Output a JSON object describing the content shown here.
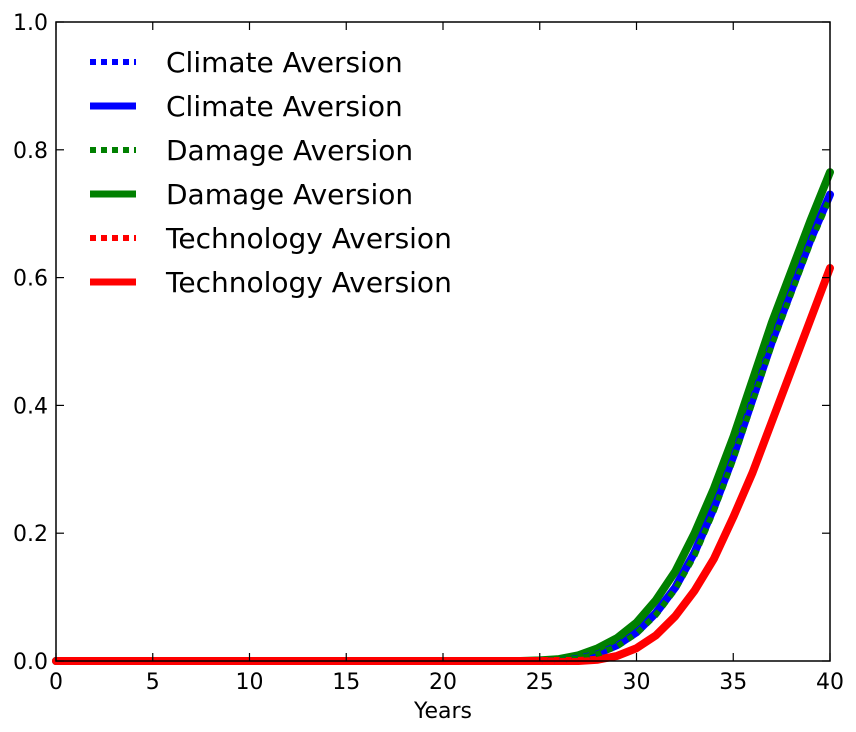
{
  "chart_data": {
    "type": "line",
    "title": "",
    "xlabel": "Years",
    "ylabel": "",
    "xlim": [
      0,
      40
    ],
    "ylim": [
      0,
      1
    ],
    "x_ticks": [
      "0",
      "5",
      "10",
      "15",
      "20",
      "25",
      "30",
      "35",
      "40"
    ],
    "y_ticks": [
      "0.0",
      "0.2",
      "0.4",
      "0.6",
      "0.8",
      "1.0"
    ],
    "grid": false,
    "legend_position": "upper-left",
    "x": [
      0,
      5,
      10,
      15,
      20,
      24,
      25,
      26,
      27,
      28,
      29,
      30,
      31,
      32,
      33,
      34,
      35,
      36,
      37,
      38,
      39,
      40
    ],
    "series": [
      {
        "name": "Climate Aversion",
        "style": "dotted",
        "color": "#0000ff",
        "values": [
          0,
          0,
          0,
          0,
          0,
          0.0,
          0.0,
          0.001,
          0.005,
          0.012,
          0.025,
          0.045,
          0.075,
          0.115,
          0.17,
          0.24,
          0.32,
          0.41,
          0.5,
          0.58,
          0.66,
          0.73
        ]
      },
      {
        "name": "Climate Aversion",
        "style": "solid",
        "color": "#0000ff",
        "values": [
          0,
          0,
          0,
          0,
          0,
          0.0,
          0.0,
          0.001,
          0.005,
          0.012,
          0.025,
          0.045,
          0.075,
          0.115,
          0.17,
          0.24,
          0.32,
          0.41,
          0.5,
          0.58,
          0.66,
          0.73
        ]
      },
      {
        "name": "Damage Aversion",
        "style": "dotted",
        "color": "#008000",
        "values": [
          0,
          0,
          0,
          0,
          0,
          0.0,
          0.0,
          0.001,
          0.004,
          0.011,
          0.023,
          0.043,
          0.072,
          0.112,
          0.165,
          0.235,
          0.315,
          0.405,
          0.495,
          0.575,
          0.655,
          0.725
        ]
      },
      {
        "name": "Damage Aversion",
        "style": "solid",
        "color": "#008000",
        "values": [
          0,
          0,
          0,
          0,
          0,
          0.0,
          0.001,
          0.003,
          0.009,
          0.02,
          0.036,
          0.06,
          0.095,
          0.14,
          0.2,
          0.27,
          0.35,
          0.44,
          0.53,
          0.61,
          0.69,
          0.765
        ]
      },
      {
        "name": "Technology Aversion",
        "style": "dotted",
        "color": "#ff0000",
        "values": [
          0,
          0,
          0,
          0,
          0,
          0.0,
          0.0,
          0.0,
          0.0,
          0.002,
          0.008,
          0.02,
          0.04,
          0.07,
          0.11,
          0.16,
          0.225,
          0.295,
          0.375,
          0.455,
          0.535,
          0.615
        ]
      },
      {
        "name": "Technology Aversion",
        "style": "solid",
        "color": "#ff0000",
        "values": [
          0,
          0,
          0,
          0,
          0,
          0.0,
          0.0,
          0.0,
          0.0,
          0.002,
          0.008,
          0.02,
          0.04,
          0.07,
          0.11,
          0.16,
          0.225,
          0.295,
          0.375,
          0.455,
          0.535,
          0.615
        ]
      }
    ]
  }
}
